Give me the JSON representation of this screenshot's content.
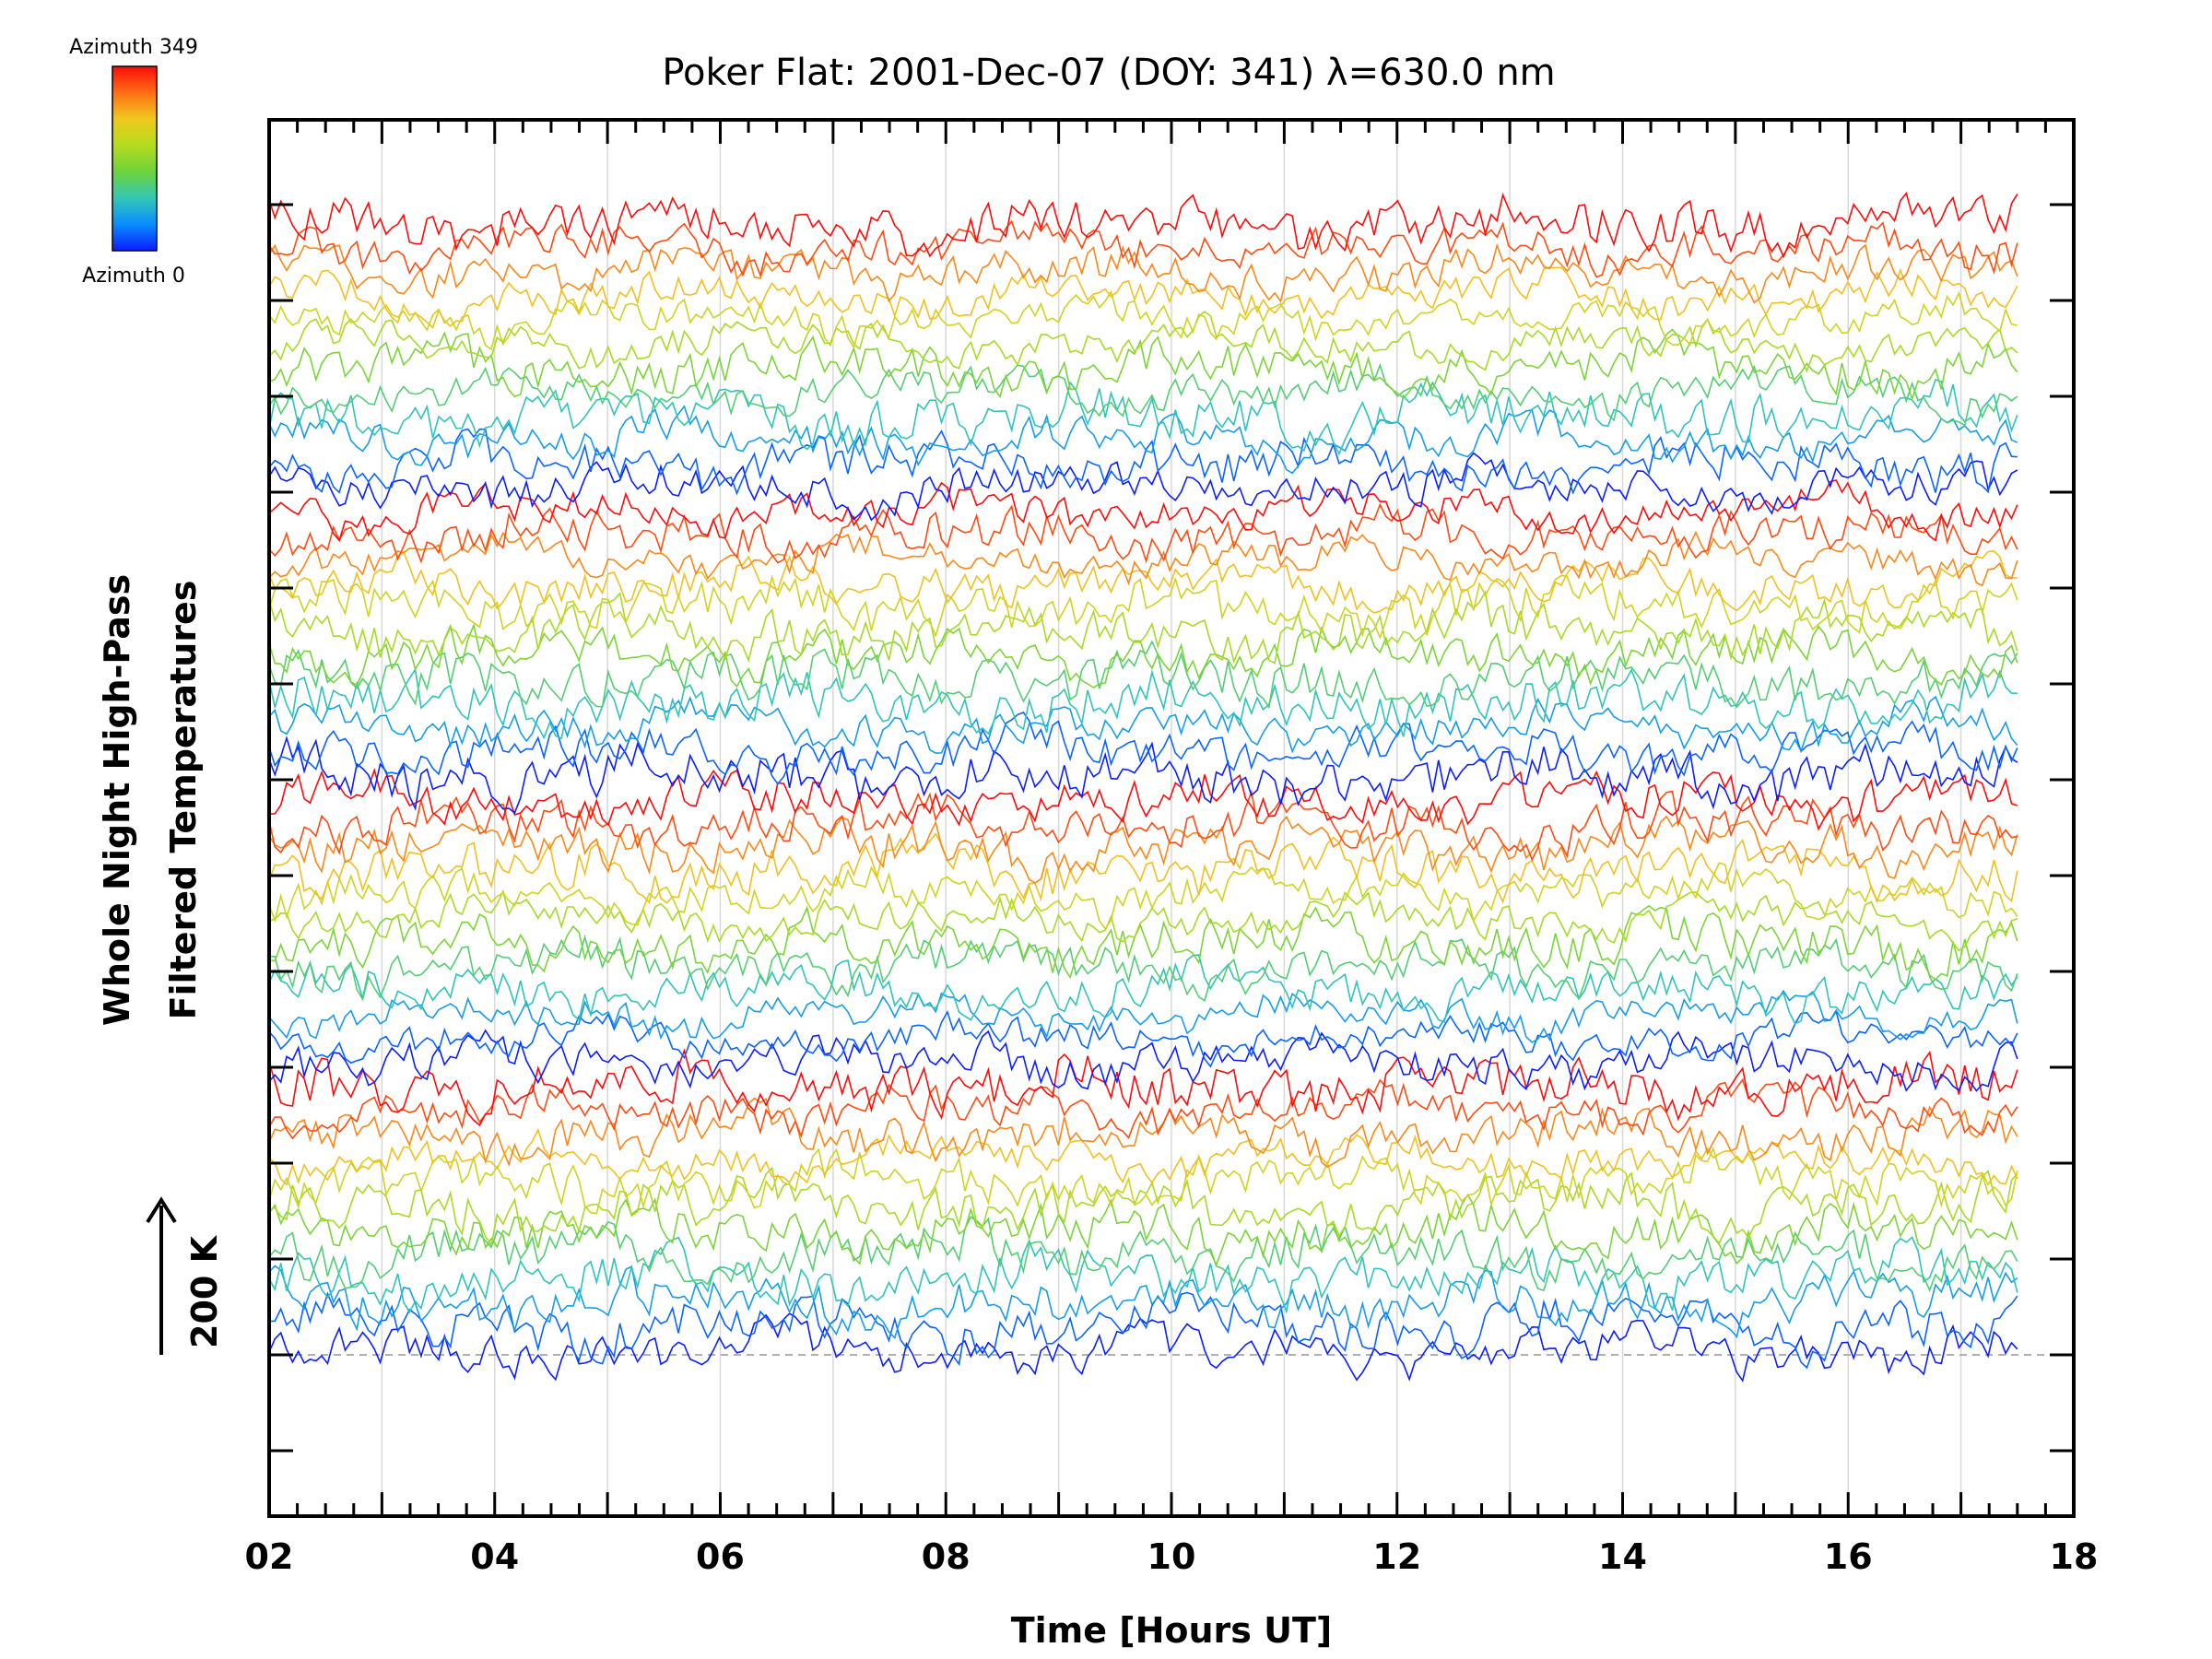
{
  "chart_data": {
    "type": "line",
    "title": "Poker Flat: 2001-Dec-07 (DOY: 341) λ=630.0 nm",
    "xlabel": "Time [Hours UT]",
    "ylabel_lines": [
      "Whole Night High-Pass",
      "Filtered Temperatures"
    ],
    "scale_bar_label": "200 K",
    "xlim": [
      2,
      18
    ],
    "x_tick_labels": [
      "02",
      "04",
      "06",
      "08",
      "10",
      "12",
      "14",
      "16",
      "18"
    ],
    "x_data_range": [
      2.0,
      17.5
    ],
    "n_samples": 300,
    "grid": "vertical",
    "colorbar": {
      "top_label": "Azimuth 349",
      "bottom_label": "Azimuth 0",
      "colors": [
        "#0a1eff",
        "#0a8cff",
        "#32c8b4",
        "#6ed23c",
        "#b4dc1e",
        "#f0c81e",
        "#ff6e14",
        "#ff0a0a"
      ]
    },
    "groups": [
      {
        "series_count": 12,
        "azimuth_range": [
          0,
          349
        ]
      },
      {
        "series_count": 12,
        "azimuth_range": [
          0,
          349
        ]
      },
      {
        "series_count": 12,
        "azimuth_range": [
          0,
          349
        ]
      },
      {
        "series_count": 12,
        "azimuth_range": [
          0,
          349
        ]
      }
    ]
  }
}
